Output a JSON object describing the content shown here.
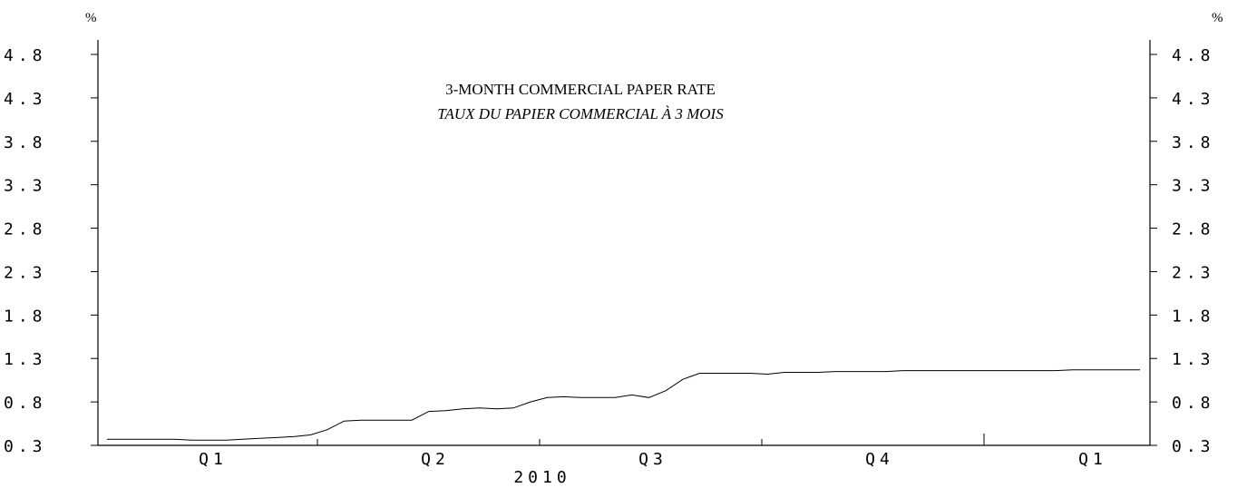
{
  "chart_data": {
    "type": "line",
    "title": "3-MONTH COMMERCIAL PAPER RATE",
    "subtitle": "TAUX DU PAPIER COMMERCIAL À 3 MOIS",
    "y_unit_left": "%",
    "y_unit_right": "%",
    "ylim": [
      0.3,
      4.8
    ],
    "y_ticks": [
      "0.3",
      "0.8",
      "1.3",
      "1.8",
      "2.3",
      "2.8",
      "3.3",
      "3.8",
      "4.3",
      "4.8"
    ],
    "x_period_labels": [
      "Q1",
      "Q2",
      "Q3",
      "Q4",
      "Q1"
    ],
    "x_year_label": "2010",
    "grid": false,
    "legend": "none",
    "series": [
      {
        "values": [
          0.37,
          0.37,
          0.37,
          0.37,
          0.37,
          0.36,
          0.36,
          0.36,
          0.37,
          0.38,
          0.39,
          0.4,
          0.42,
          0.48,
          0.58,
          0.59,
          0.59,
          0.59,
          0.59,
          0.69,
          0.7,
          0.72,
          0.73,
          0.72,
          0.73,
          0.8,
          0.85,
          0.86,
          0.85,
          0.85,
          0.85,
          0.88,
          0.85,
          0.93,
          1.06,
          1.13,
          1.13,
          1.13,
          1.13,
          1.12,
          1.14,
          1.14,
          1.14,
          1.15,
          1.15,
          1.15,
          1.15,
          1.16,
          1.16,
          1.16,
          1.16,
          1.16,
          1.16,
          1.16,
          1.16,
          1.16,
          1.16,
          1.17,
          1.17,
          1.17,
          1.17,
          1.17
        ]
      }
    ]
  }
}
